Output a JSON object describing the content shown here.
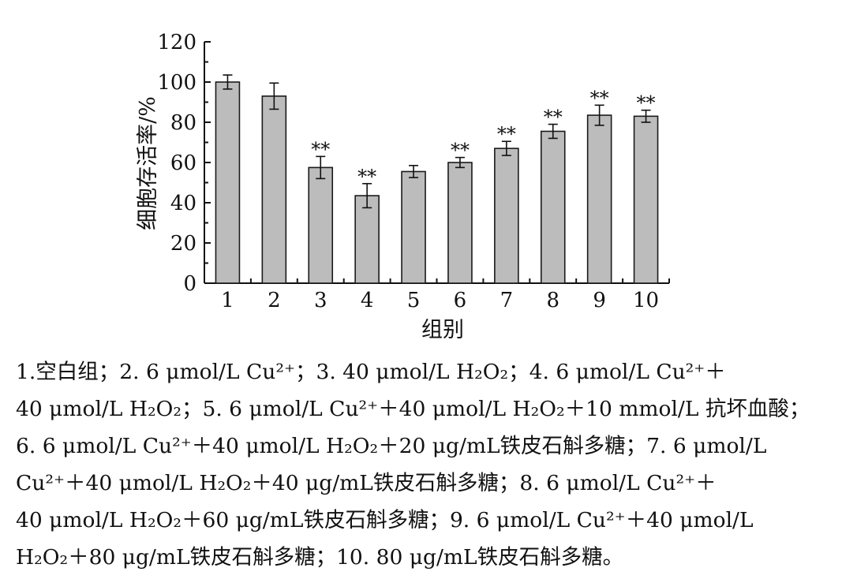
{
  "chart_data": {
    "type": "bar",
    "categories": [
      "1",
      "2",
      "3",
      "4",
      "5",
      "6",
      "7",
      "8",
      "9",
      "10"
    ],
    "values": [
      100,
      93,
      57.5,
      43.5,
      55.5,
      60,
      67,
      75.5,
      83.5,
      83
    ],
    "errors": [
      3.5,
      6.5,
      5.5,
      6,
      3,
      2.5,
      3.5,
      3.5,
      5,
      3
    ],
    "significance": [
      "",
      "",
      "**",
      "**",
      "",
      "**",
      "**",
      "**",
      "**",
      "**"
    ],
    "ylabel": "细胞存活率/%",
    "xlabel": "组别",
    "ylim": [
      0,
      120
    ],
    "yticks": [
      "0",
      "20",
      "40",
      "60",
      "80",
      "100",
      "120"
    ],
    "grid": false,
    "bar_color": "#bcbcbc",
    "edge_color": "#1a1a1a"
  },
  "caption": {
    "lines": [
      "1.空白组；2. 6 μmol/L Cu²⁺；3. 40 μmol/L H₂O₂；4. 6 μmol/L Cu²⁺＋",
      "40 μmol/L H₂O₂；5. 6 μmol/L Cu²⁺＋40 μmol/L H₂O₂＋10 mmol/L 抗坏血酸；",
      "6. 6 μmol/L Cu²⁺＋40 μmol/L H₂O₂＋20 μg/mL铁皮石斛多糖；7. 6 μmol/L",
      "Cu²⁺＋40 μmol/L H₂O₂＋40 μg/mL铁皮石斛多糖；8. 6 μmol/L Cu²⁺＋",
      "40 μmol/L H₂O₂＋60 μg/mL铁皮石斛多糖；9. 6 μmol/L Cu²⁺＋40 μmol/L",
      "H₂O₂＋80 μg/mL铁皮石斛多糖；10. 80 μg/mL铁皮石斛多糖。"
    ]
  }
}
